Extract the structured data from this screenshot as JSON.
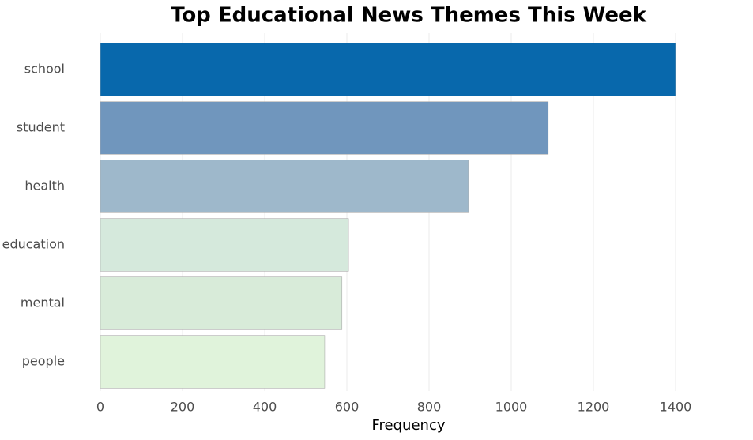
{
  "chart_data": {
    "type": "barh",
    "title": "Top Educational News Themes This Week",
    "x_label": "Frequency",
    "categories": [
      "school",
      "student",
      "health",
      "education",
      "mental",
      "people"
    ],
    "values": [
      1400,
      1090,
      896,
      604,
      588,
      546
    ],
    "colors": [
      "#0868ac",
      "#7096bd",
      "#9eb8cb",
      "#d5e9dc",
      "#d8ebd9",
      "#e0f3db"
    ],
    "xlim": [
      0,
      1400
    ],
    "xticks": [
      0,
      200,
      400,
      600,
      800,
      1000,
      1200,
      1400
    ],
    "grid": true
  }
}
